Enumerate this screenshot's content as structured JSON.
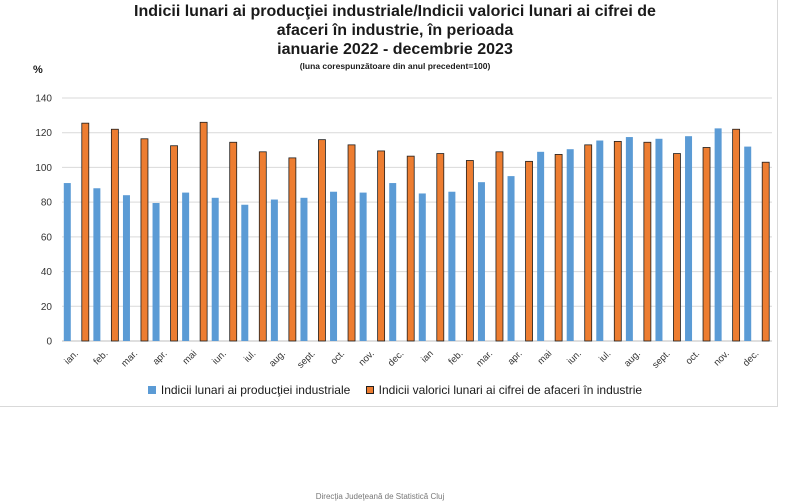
{
  "chart_data": {
    "type": "bar",
    "title_lines": [
      "Indicii lunari ai producţiei industriale/Indicii valorici lunari ai cifrei de",
      "afaceri în industrie, în perioada",
      "ianuarie 2022 - decembrie 2023"
    ],
    "subtitle": "(luna corespunzătoare din anul precedent=100)",
    "ylabel": "%",
    "ylim": [
      0,
      140
    ],
    "yticks": [
      0,
      20,
      40,
      60,
      80,
      100,
      120,
      140
    ],
    "grid": true,
    "legend_position": "bottom",
    "categories": [
      "ian.",
      "feb.",
      "mar.",
      "apr.",
      "mai",
      "iun.",
      "iul.",
      "aug.",
      "sept.",
      "oct.",
      "nov.",
      "dec.",
      "ian",
      "feb.",
      "mar.",
      "apr.",
      "mai",
      "iun.",
      "iul.",
      "aug.",
      "sept.",
      "oct.",
      "nov.",
      "dec."
    ],
    "series": [
      {
        "name": "Indicii lunari ai producţiei industriale",
        "color": "#5b9bd5",
        "values": [
          91,
          88,
          84,
          79.5,
          85.5,
          82.5,
          78.5,
          81.5,
          82.5,
          86,
          85.5,
          91,
          85,
          86,
          91.5,
          95,
          109,
          110.5,
          115.5,
          117.5,
          116.5,
          118,
          122.5,
          112
        ]
      },
      {
        "name": "Indicii valorici lunari ai cifrei de afaceri în industrie",
        "color": "#ed7d31",
        "values": [
          125.5,
          122,
          116.5,
          112.5,
          126,
          114.5,
          109,
          105.5,
          116,
          113,
          109.5,
          106.5,
          108,
          104,
          109,
          103.5,
          107.5,
          113,
          115,
          114.5,
          108,
          111.5,
          122,
          103
        ]
      }
    ]
  },
  "footer": "Direcţia Judeţeană de Statistică Cluj"
}
